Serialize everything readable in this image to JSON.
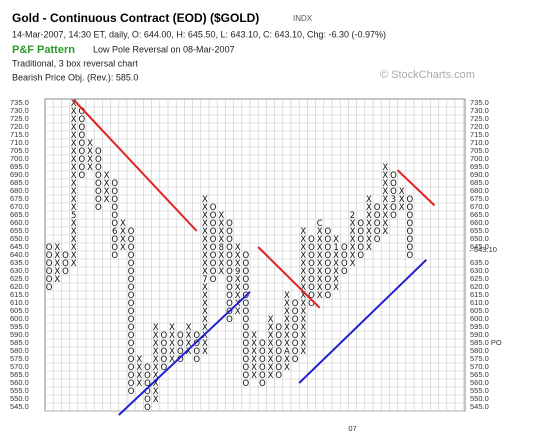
{
  "chart_data": {
    "type": "point-and-figure",
    "title": "Gold - Continuous Contract (EOD) ($GOLD)",
    "exchange": "INDX",
    "subtitle": "14-Mar-2007, 14:30 ET, daily, O: 644.00, H: 645.50, L: 643.10, C: 643.10, Chg: -6.30 (-0.97%)",
    "pattern_label": "P&F Pattern",
    "pattern": "Low Pole Reversal on 08-Mar-2007",
    "method": "Traditional, 3 box reversal chart",
    "objective": "Bearish Price Obj. (Rev.): 585.0",
    "watermark": "© StockCharts.com",
    "ylim": [
      545,
      735
    ],
    "box_size": 5,
    "yticks": [
      {
        "value": 735,
        "label": "735.0"
      },
      {
        "value": 730,
        "label": "730.0"
      },
      {
        "value": 725,
        "label": "725.0"
      },
      {
        "value": 720,
        "label": "720.0"
      },
      {
        "value": 715,
        "label": "715.0"
      },
      {
        "value": 710,
        "label": "710.0"
      },
      {
        "value": 705,
        "label": "705.0"
      },
      {
        "value": 700,
        "label": "700.0"
      },
      {
        "value": 695,
        "label": "695.0"
      },
      {
        "value": 690,
        "label": "690.0"
      },
      {
        "value": 685,
        "label": "685.0"
      },
      {
        "value": 680,
        "label": "680.0"
      },
      {
        "value": 675,
        "label": "675.0"
      },
      {
        "value": 670,
        "label": "670.0"
      },
      {
        "value": 665,
        "label": "665.0"
      },
      {
        "value": 660,
        "label": "660.0"
      },
      {
        "value": 655,
        "label": "655.0"
      },
      {
        "value": 650,
        "label": "650.0"
      },
      {
        "value": 645,
        "label": "645.0"
      },
      {
        "value": 640,
        "label": "640.0"
      },
      {
        "value": 635,
        "label": "635.0"
      },
      {
        "value": 630,
        "label": "630.0"
      },
      {
        "value": 625,
        "label": "625.0"
      },
      {
        "value": 620,
        "label": "620.0"
      },
      {
        "value": 615,
        "label": "615.0"
      },
      {
        "value": 610,
        "label": "610.0"
      },
      {
        "value": 605,
        "label": "605.0"
      },
      {
        "value": 600,
        "label": "600.0"
      },
      {
        "value": 595,
        "label": "595.0"
      },
      {
        "value": 590,
        "label": "590.0"
      },
      {
        "value": 585,
        "label": "585.0"
      },
      {
        "value": 580,
        "label": "580.0"
      },
      {
        "value": 575,
        "label": "575.0"
      },
      {
        "value": 570,
        "label": "570.0"
      },
      {
        "value": 565,
        "label": "565.0"
      },
      {
        "value": 560,
        "label": "560.0"
      },
      {
        "value": 555,
        "label": "555.0"
      },
      {
        "value": 550,
        "label": "550.0"
      },
      {
        "value": 545,
        "label": "545.0"
      }
    ],
    "highlight_values": [
      640,
      585
    ],
    "highlight_color": "#d03030",
    "last_price": {
      "value": 643.1,
      "label": "643.10"
    },
    "price_objective": {
      "value": 585,
      "label": "585.0 PO"
    },
    "columns": [
      {
        "direction": "O",
        "high": 645,
        "low": 620
      },
      {
        "direction": "X",
        "low": 625,
        "high": 645
      },
      {
        "direction": "O",
        "high": 640,
        "low": 630
      },
      {
        "direction": "X",
        "low": 635,
        "high": 735
      },
      {
        "direction": "O",
        "high": 730,
        "low": 690
      },
      {
        "direction": "X",
        "low": 695,
        "high": 710
      },
      {
        "direction": "O",
        "high": 705,
        "low": 670
      },
      {
        "direction": "X",
        "low": 675,
        "high": 690
      },
      {
        "direction": "O",
        "high": 685,
        "low": 640
      },
      {
        "direction": "X",
        "low": 645,
        "high": 660
      },
      {
        "direction": "O",
        "high": 655,
        "low": 555
      },
      {
        "direction": "X",
        "low": 560,
        "high": 575
      },
      {
        "direction": "O",
        "high": 570,
        "low": 545
      },
      {
        "direction": "X",
        "low": 550,
        "high": 595
      },
      {
        "direction": "O",
        "high": 590,
        "low": 570
      },
      {
        "direction": "X",
        "low": 575,
        "high": 595
      },
      {
        "direction": "O",
        "high": 590,
        "low": 575
      },
      {
        "direction": "X",
        "low": 580,
        "high": 595
      },
      {
        "direction": "O",
        "high": 590,
        "low": 575
      },
      {
        "direction": "X",
        "low": 580,
        "high": 675
      },
      {
        "direction": "O",
        "high": 670,
        "low": 625
      },
      {
        "direction": "X",
        "low": 630,
        "high": 665
      },
      {
        "direction": "O",
        "high": 660,
        "low": 600
      },
      {
        "direction": "X",
        "low": 605,
        "high": 645
      },
      {
        "direction": "O",
        "high": 640,
        "low": 560
      },
      {
        "direction": "X",
        "low": 565,
        "high": 590
      },
      {
        "direction": "O",
        "high": 585,
        "low": 560
      },
      {
        "direction": "X",
        "low": 565,
        "high": 600
      },
      {
        "direction": "O",
        "high": 595,
        "low": 565
      },
      {
        "direction": "X",
        "low": 570,
        "high": 615
      },
      {
        "direction": "O",
        "high": 610,
        "low": 575
      },
      {
        "direction": "X",
        "low": 580,
        "high": 655
      },
      {
        "direction": "O",
        "high": 650,
        "low": 610
      },
      {
        "direction": "X",
        "low": 615,
        "high": 660
      },
      {
        "direction": "O",
        "high": 655,
        "low": 615
      },
      {
        "direction": "X",
        "low": 620,
        "high": 650
      },
      {
        "direction": "O",
        "high": 645,
        "low": 630
      },
      {
        "direction": "X",
        "low": 635,
        "high": 665
      },
      {
        "direction": "O",
        "high": 660,
        "low": 640
      },
      {
        "direction": "X",
        "low": 645,
        "high": 675
      },
      {
        "direction": "O",
        "high": 670,
        "low": 650
      },
      {
        "direction": "X",
        "low": 655,
        "high": 695
      },
      {
        "direction": "O",
        "high": 690,
        "low": 665
      },
      {
        "direction": "X",
        "low": 670,
        "high": 680
      },
      {
        "direction": "O",
        "high": 675,
        "low": 640
      }
    ],
    "month_markers": [
      {
        "column": 3,
        "value": 665,
        "label": "5"
      },
      {
        "column": 8,
        "value": 655,
        "label": "6"
      },
      {
        "column": 19,
        "value": 625,
        "label": "7"
      },
      {
        "column": 21,
        "value": 645,
        "label": "8"
      },
      {
        "column": 23,
        "value": 630,
        "label": "9"
      },
      {
        "column": 29,
        "value": 580,
        "label": "A"
      },
      {
        "column": 33,
        "value": 660,
        "label": "C"
      },
      {
        "column": 35,
        "value": 645,
        "label": "1"
      },
      {
        "column": 37,
        "value": 665,
        "label": "2"
      },
      {
        "column": 42,
        "value": 675,
        "label": "3"
      }
    ],
    "x_markers": [
      {
        "column": 37,
        "label": "07"
      }
    ],
    "trendlines": [
      {
        "color": "#e02020",
        "x": [
          3,
          18
        ],
        "y": [
          737,
          655
        ]
      },
      {
        "color": "#e02020",
        "x": [
          25.5,
          33
        ],
        "y": [
          645,
          607
        ]
      },
      {
        "color": "#e02020",
        "x": [
          42.5,
          47
        ],
        "y": [
          693,
          671
        ]
      },
      {
        "color": "#2020d0",
        "x": [
          8.5,
          24.5
        ],
        "y": [
          540,
          617
        ]
      },
      {
        "color": "#2020d0",
        "x": [
          30.5,
          46
        ],
        "y": [
          560,
          637
        ]
      }
    ],
    "grid": true
  }
}
